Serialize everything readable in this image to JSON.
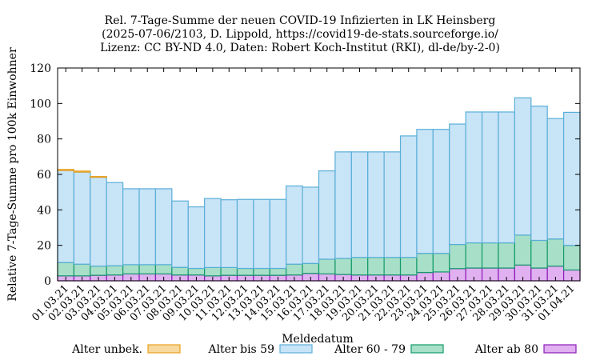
{
  "title": {
    "line1": "Rel. 7-Tage-Summe der neuen COVID-19 Infizierten in LK Heinsberg",
    "line2": "(2025-07-06/2103, D. Lippold, https://covid19-de-stats.sourceforge.io/",
    "line3": "Lizenz: CC BY-ND 4.0, Daten: Robert Koch-Institut (RKI), dl-de/by-2-0)"
  },
  "chart_data": {
    "type": "bar",
    "stacked": true,
    "xlabel": "Meldedatum",
    "ylabel": "Relative 7-Tage-Summe pro 100k Einwohner",
    "ylim": [
      0,
      120
    ],
    "yticks": [
      0,
      20,
      40,
      60,
      80,
      100,
      120
    ],
    "grid": false,
    "legend_placement": "bottom",
    "categories": [
      "01.03.21",
      "02.03.21",
      "03.03.21",
      "04.03.21",
      "05.03.21",
      "06.03.21",
      "07.03.21",
      "08.03.21",
      "09.03.21",
      "10.03.21",
      "11.03.21",
      "12.03.21",
      "13.03.21",
      "14.03.21",
      "15.03.21",
      "16.03.21",
      "17.03.21",
      "18.03.21",
      "19.03.21",
      "20.03.21",
      "21.03.21",
      "22.03.21",
      "23.03.21",
      "24.03.21",
      "25.03.21",
      "26.03.21",
      "27.03.21",
      "28.03.21",
      "29.03.21",
      "30.03.21",
      "31.03.21",
      "01.04.21"
    ],
    "series": [
      {
        "name": "Alter ab 80",
        "fill": "#e0b0f0",
        "stroke": "#8a1ab8",
        "values": [
          2.8,
          2.8,
          3.1,
          3.3,
          3.9,
          3.9,
          3.9,
          3.3,
          3.3,
          2.8,
          3.1,
          3.1,
          3.1,
          3.1,
          3.3,
          4.2,
          3.9,
          3.6,
          3.3,
          3.3,
          3.3,
          3.3,
          4.7,
          5.0,
          6.9,
          7.2,
          7.2,
          7.2,
          8.9,
          7.2,
          8.3,
          6.1
        ]
      },
      {
        "name": "Alter 60 - 79",
        "fill": "#a8dfc8",
        "stroke": "#139a6b",
        "values": [
          7.5,
          6.6,
          5.2,
          5.2,
          5.2,
          5.2,
          5.2,
          4.3,
          3.7,
          4.7,
          4.4,
          3.9,
          3.9,
          3.9,
          6.1,
          5.6,
          8.3,
          9.0,
          9.9,
          9.9,
          9.9,
          9.9,
          10.8,
          10.5,
          13.6,
          14.2,
          14.2,
          14.2,
          16.9,
          15.6,
          15.3,
          13.9
        ]
      },
      {
        "name": "Alter bis 59",
        "fill": "#c8e4f7",
        "stroke": "#5aaed8",
        "values": [
          51.9,
          51.9,
          50.1,
          46.9,
          42.8,
          42.8,
          42.8,
          37.4,
          34.7,
          38.9,
          38.2,
          38.9,
          38.9,
          38.9,
          44.1,
          43.0,
          49.8,
          60.1,
          59.5,
          59.5,
          59.5,
          68.5,
          69.9,
          69.9,
          67.9,
          73.8,
          73.8,
          73.8,
          77.4,
          75.7,
          67.9,
          75.0
        ]
      },
      {
        "name": "Alter unbek.",
        "fill": "#f8d89c",
        "stroke": "#e8a020",
        "values": [
          0.6,
          0.6,
          0.4,
          0,
          0,
          0,
          0,
          0,
          0,
          0,
          0,
          0,
          0,
          0,
          0,
          0,
          0,
          0,
          0,
          0,
          0,
          0,
          0,
          0,
          0,
          0,
          0,
          0,
          0,
          0,
          0,
          0
        ]
      }
    ],
    "legend_order": [
      "Alter unbek.",
      "Alter bis 59",
      "Alter 60 - 79",
      "Alter ab 80"
    ]
  }
}
